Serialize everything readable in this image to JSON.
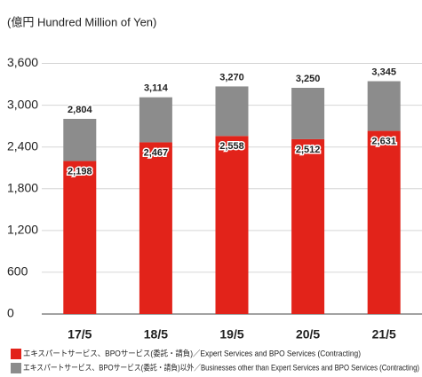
{
  "chart_data": {
    "type": "stacked_bar",
    "title": "(億円 Hundred Million of Yen)",
    "categories": [
      "17/5",
      "18/5",
      "19/5",
      "20/5",
      "21/5"
    ],
    "series": [
      {
        "name": "エキスパートサービス、BPOサービス(委託・請負)／Expert Services and BPO Services (Contracting)",
        "color": "#e2231a",
        "values": [
          2198,
          2467,
          2558,
          2512,
          2631
        ],
        "value_labels": [
          "2,198",
          "2,467",
          "2,558",
          "2,512",
          "2,631"
        ]
      },
      {
        "name": "エキスパートサービス、BPOサービス(委託・請負)以外／Businesses other than Expert Services and BPO Services (Contracting)",
        "color": "#8c8c8c",
        "values": [
          606,
          647,
          712,
          738,
          714
        ]
      }
    ],
    "totals": {
      "values": [
        2804,
        3114,
        3270,
        3250,
        3345
      ],
      "value_labels": [
        "2,804",
        "3,114",
        "3,270",
        "3,250",
        "3,345"
      ]
    },
    "ylim": [
      0,
      3900
    ],
    "yticks": [
      0,
      600,
      {
        "value": 1200,
        "label": "1,200"
      },
      {
        "value": 1800,
        "label": "1,800"
      },
      {
        "value": 2400,
        "label": "2,400"
      },
      {
        "value": 3000,
        "label": "3,000"
      },
      {
        "value": 3600,
        "label": "3,600"
      }
    ],
    "grid": true
  }
}
